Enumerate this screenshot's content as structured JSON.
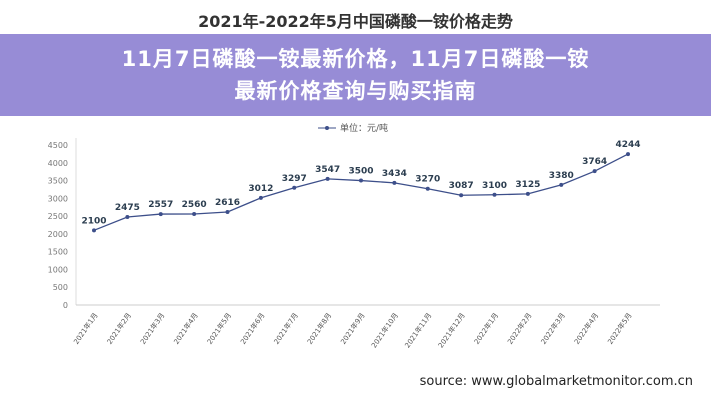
{
  "banner": {
    "line1": "11月7日磷酸一铵最新价格，11月7日磷酸一铵",
    "line2": "最新价格查询与购买指南"
  },
  "source": "source: www.globalmarketmonitor.com.cn",
  "chart_data": {
    "type": "line",
    "title": "2021年-2022年5月中国磷酸一铵价格走势",
    "legend": "单位：元/吨",
    "legend_position": "top-center",
    "categories": [
      "2021年1月",
      "2021年2月",
      "2021年3月",
      "2021年4月",
      "2021年5月",
      "2021年6月",
      "2021年7月",
      "2021年8月",
      "2021年9月",
      "2021年10月",
      "2021年11月",
      "2021年12月",
      "2022年1月",
      "2022年2月",
      "2022年3月",
      "2022年4月",
      "2022年5月"
    ],
    "values": [
      2100,
      2475,
      2557,
      2560,
      2616,
      3012,
      3297,
      3547,
      3500,
      3434,
      3270,
      3087,
      3100,
      3125,
      3380,
      3764,
      4244
    ],
    "yticks": [
      0,
      500,
      1000,
      1500,
      2000,
      2500,
      3000,
      3500,
      4000,
      4500
    ],
    "ylim": [
      0,
      4500
    ],
    "grid": false,
    "color": "#3d4f8a"
  }
}
